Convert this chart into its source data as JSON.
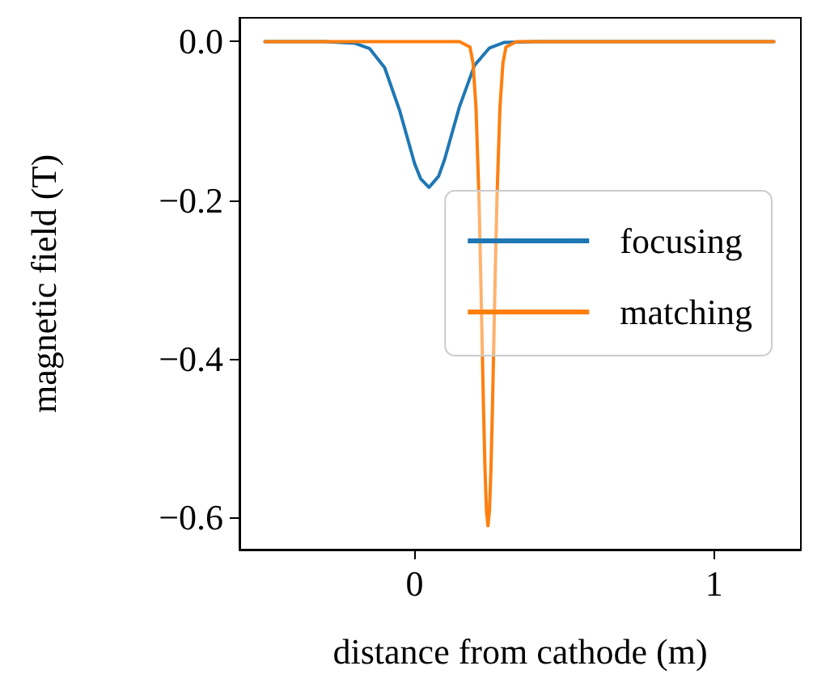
{
  "chart_data": {
    "type": "line",
    "xlabel": "distance from cathode (m)",
    "ylabel": "magnetic field (T)",
    "xlim": [
      -0.585,
      1.29
    ],
    "xticks": [
      0,
      1
    ],
    "ylim": [
      -0.641,
      0.03
    ],
    "yticks": [
      {
        "value": 0,
        "label": "0.0"
      },
      {
        "value": -0.2,
        "label": "−0.2"
      },
      {
        "value": -0.4,
        "label": "−0.4"
      },
      {
        "value": -0.6,
        "label": "−0.6"
      }
    ],
    "grid": false,
    "legend": "right",
    "marker": "none",
    "line_style": "solid",
    "series": [
      {
        "name": "focusing",
        "color": "#1f77b4",
        "x": [
          -0.5,
          -0.3,
          -0.2,
          -0.15,
          -0.1,
          -0.05,
          0,
          0.02,
          0.048,
          0.08,
          0.1,
          0.15,
          0.2,
          0.25,
          0.3,
          0.4,
          1.2
        ],
        "values": [
          0,
          0,
          -0.002,
          -0.009,
          -0.033,
          -0.087,
          -0.154,
          -0.173,
          -0.184,
          -0.17,
          -0.149,
          -0.082,
          -0.03,
          -0.008,
          -0.001,
          0,
          0
        ]
      },
      {
        "name": "matching",
        "color": "#ff7f0e",
        "x": [
          -0.5,
          0.15,
          0.185,
          0.195,
          0.205,
          0.215,
          0.22,
          0.225,
          0.23,
          0.235,
          0.24,
          0.245,
          0.25,
          0.255,
          0.26,
          0.265,
          0.27,
          0.275,
          0.285,
          0.295,
          0.305,
          0.34,
          1.2
        ],
        "values": [
          0,
          0,
          -0.007,
          -0.027,
          -0.083,
          -0.198,
          -0.28,
          -0.371,
          -0.461,
          -0.539,
          -0.592,
          -0.611,
          -0.592,
          -0.539,
          -0.461,
          -0.371,
          -0.28,
          -0.198,
          -0.083,
          -0.027,
          -0.007,
          0,
          0
        ]
      }
    ]
  }
}
